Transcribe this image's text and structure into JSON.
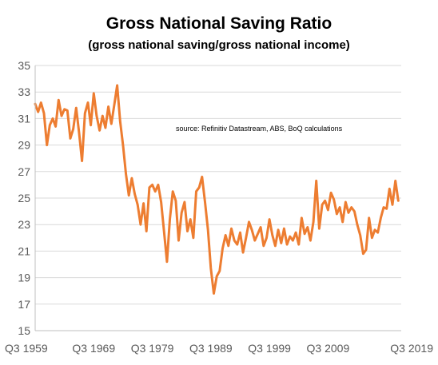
{
  "chart_data": {
    "type": "line",
    "title": "Gross National Saving Ratio",
    "subtitle": "(gross  national saving/gross  national income)",
    "annotation": "source:  Refinitiv Datastream, ABS, BoQ calculations",
    "xlabel": "",
    "ylabel": "",
    "x_ticks": [
      "Q3 1959",
      "Q3 1969",
      "Q3 1979",
      "Q3 1989",
      "Q3 1999",
      "Q3 2009",
      "Q3 2019"
    ],
    "y_ticks": [
      "15",
      "17",
      "19",
      "21",
      "23",
      "25",
      "27",
      "29",
      "31",
      "33",
      "35"
    ],
    "xlim": [
      1959.5,
      2022.0
    ],
    "ylim": [
      15,
      35
    ],
    "grid": true,
    "legend": "none",
    "line_color": "#ED7D31",
    "grid_color": "#D9D9D9",
    "series": [
      {
        "x": [
          1959.5,
          1960.0,
          1960.5,
          1961.0,
          1961.5,
          1962.0,
          1962.5,
          1963.0,
          1963.5,
          1964.0,
          1964.5,
          1965.0,
          1965.5,
          1966.0,
          1966.5,
          1967.0,
          1967.5,
          1968.0,
          1968.5,
          1969.0,
          1969.5,
          1970.0,
          1970.5,
          1971.0,
          1971.5,
          1972.0,
          1972.5,
          1973.0,
          1973.5,
          1974.0,
          1974.5,
          1975.0,
          1975.5,
          1976.0,
          1976.5,
          1977.0,
          1977.5,
          1978.0,
          1978.5,
          1979.0,
          1979.5,
          1980.0,
          1980.5,
          1981.0,
          1981.5,
          1982.0,
          1982.5,
          1983.0,
          1983.5,
          1984.0,
          1984.5,
          1985.0,
          1985.5,
          1986.0,
          1986.5,
          1987.0,
          1987.5,
          1988.0,
          1988.5,
          1989.0,
          1989.5,
          1990.0,
          1990.5,
          1991.0,
          1991.5,
          1992.0,
          1992.5,
          1993.0,
          1993.5,
          1994.0,
          1994.5,
          1995.0,
          1995.5,
          1996.0,
          1996.5,
          1997.0,
          1997.5,
          1998.0,
          1998.5,
          1999.0,
          1999.5,
          2000.0,
          2000.5,
          2001.0,
          2001.5,
          2002.0,
          2002.5,
          2003.0,
          2003.5,
          2004.0,
          2004.5,
          2005.0,
          2005.5,
          2006.0,
          2006.5,
          2007.0,
          2007.5,
          2008.0,
          2008.5,
          2009.0,
          2009.5,
          2010.0,
          2010.5,
          2011.0,
          2011.5,
          2012.0,
          2012.5,
          2013.0,
          2013.5,
          2014.0,
          2014.5,
          2015.0,
          2015.5,
          2016.0,
          2016.5,
          2017.0,
          2017.5,
          2018.0,
          2018.5,
          2019.0,
          2019.5,
          2020.0,
          2020.5,
          2021.0,
          2021.5
        ],
        "values": [
          32.1,
          31.5,
          32.2,
          31.4,
          29.0,
          30.5,
          31.0,
          30.4,
          32.4,
          31.2,
          31.7,
          31.6,
          29.5,
          30.2,
          31.8,
          29.9,
          27.8,
          31.4,
          32.2,
          30.5,
          32.9,
          31.2,
          30.1,
          31.2,
          30.3,
          31.9,
          30.6,
          32.0,
          33.5,
          30.8,
          29.0,
          26.8,
          25.2,
          26.5,
          25.3,
          24.5,
          23.0,
          24.6,
          22.5,
          25.8,
          26.0,
          25.5,
          26.0,
          24.7,
          22.5,
          20.2,
          23.4,
          25.5,
          24.8,
          21.8,
          23.9,
          24.7,
          22.5,
          23.4,
          22.0,
          25.5,
          25.8,
          26.6,
          24.7,
          22.6,
          19.7,
          17.8,
          19.1,
          19.5,
          21.2,
          22.2,
          21.4,
          22.7,
          21.8,
          21.5,
          22.4,
          20.9,
          22.0,
          23.2,
          22.6,
          21.8,
          22.3,
          22.8,
          21.4,
          22.0,
          23.4,
          22.2,
          21.4,
          22.6,
          21.6,
          22.7,
          21.5,
          22.1,
          21.8,
          22.4,
          21.5,
          23.5,
          22.3,
          22.8,
          21.8,
          23.2,
          26.3,
          22.7,
          24.5,
          24.8,
          24.1,
          25.4,
          24.9,
          23.8,
          24.3,
          23.2,
          24.7,
          23.9,
          24.3,
          24.0,
          23.0,
          22.2,
          20.8,
          21.1,
          23.5,
          22.0,
          22.6,
          22.4,
          23.5,
          24.3,
          24.2,
          25.7,
          24.5,
          26.3,
          24.8
        ]
      }
    ]
  }
}
